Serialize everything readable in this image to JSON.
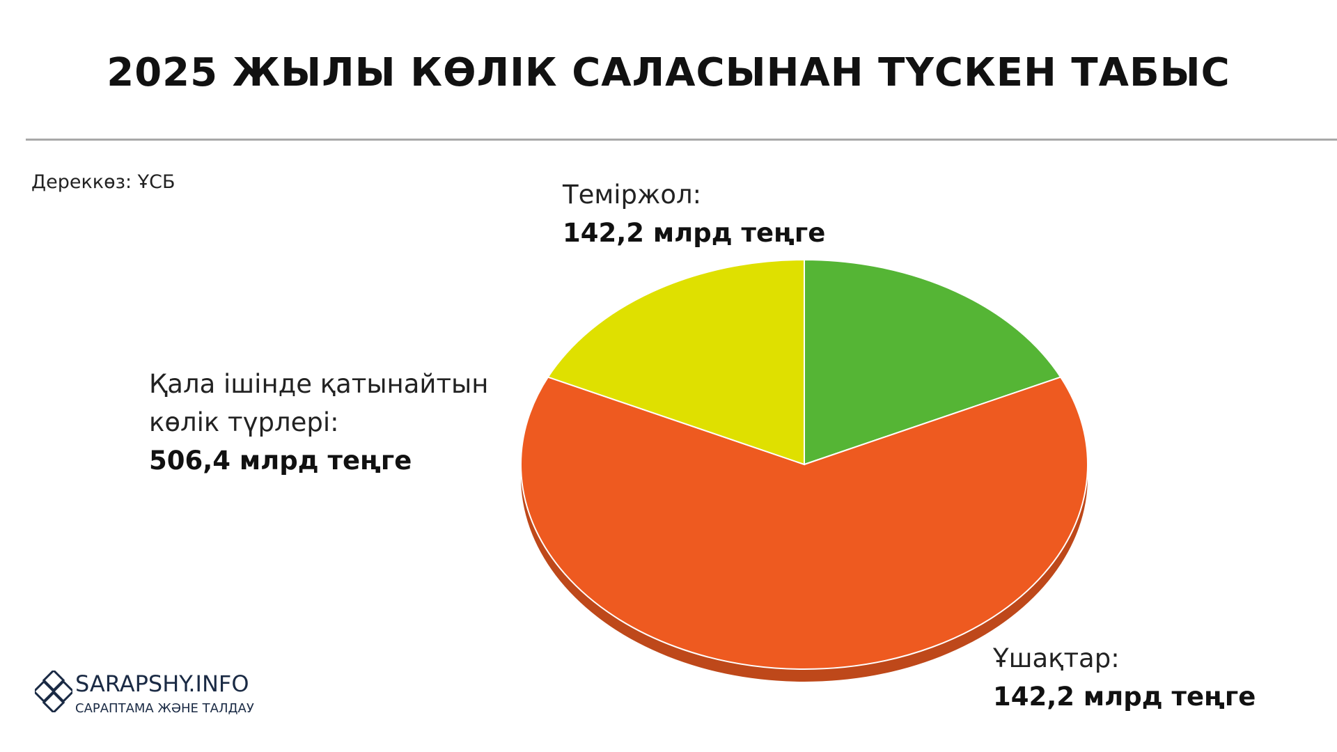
{
  "chart_data": {
    "type": "pie",
    "title": "2025 ЖЫЛЫ КӨЛІК САЛАСЫНАН ТҮСКЕН ТАБЫС",
    "source": "Дереккөз: ҰСБ",
    "categories": [
      "Ұшақтар:",
      "Қала ішінде қатынайтын көлік түрлері:",
      "Теміржол:"
    ],
    "values": [
      142.2,
      506.4,
      142.2
    ],
    "value_labels": [
      "142,2 млрд теңге",
      "506,4 млрд теңге",
      "142,2 млрд теңге"
    ],
    "colors": [
      "#55b535",
      "#ee5a20",
      "#dfe000"
    ]
  },
  "logo": {
    "name": "SARAPSHY.INFO",
    "tagline": "САРАПТАМА ЖӘНЕ ТАЛДАУ"
  }
}
